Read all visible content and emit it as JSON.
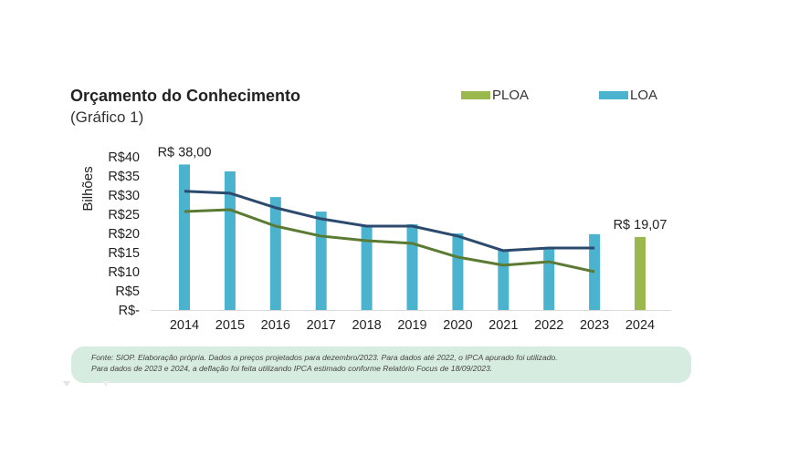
{
  "header": {
    "title": "Orçamento do Conhecimento",
    "subtitle": "(Gráfico 1)"
  },
  "legend": [
    {
      "label": "PLOA",
      "color": "#9bb84e"
    },
    {
      "label": "LOA",
      "color": "#4cb3cf"
    }
  ],
  "footnote": {
    "line1": "Fonte: SIOP. Elaboração própria. Dados a preços projetados para dezembro/2023. Para dados até 2022, o IPCA apurado foi utilizado.",
    "line2": "Para dados de 2023 e 2024, a deflação foi feita utilizando IPCA estimado conforme Relatório Focus de 18/09/2023."
  },
  "chart_data": {
    "type": "bar",
    "title": "Orçamento do Conhecimento (Gráfico 1)",
    "xlabel": "",
    "ylabel": "Bilhões",
    "ylim": [
      0,
      40
    ],
    "yticks": [
      0,
      5,
      10,
      15,
      20,
      25,
      30,
      35,
      40
    ],
    "ytick_labels": [
      "R$-",
      "R$5",
      "R$10",
      "R$15",
      "R$20",
      "R$25",
      "R$30",
      "R$35",
      "R$40"
    ],
    "categories": [
      "2014",
      "2015",
      "2016",
      "2017",
      "2018",
      "2019",
      "2020",
      "2021",
      "2022",
      "2023",
      "2024"
    ],
    "grid": false,
    "legend_position": "top-right",
    "series": [
      {
        "name": "LOA",
        "kind": "bar",
        "color": "#4cb3cf",
        "values": [
          38.0,
          36.2,
          29.5,
          25.7,
          21.9,
          22.4,
          20.0,
          15.5,
          16.0,
          19.8,
          null
        ]
      },
      {
        "name": "PLOA",
        "kind": "bar",
        "color": "#9bb84e",
        "values": [
          null,
          null,
          null,
          null,
          null,
          null,
          null,
          null,
          null,
          null,
          19.07
        ]
      },
      {
        "name": "Line 1 (dark blue)",
        "kind": "line",
        "color": "#2c4a6e",
        "values": [
          31.0,
          30.5,
          26.7,
          23.8,
          21.9,
          21.9,
          19.3,
          15.5,
          16.2,
          16.2,
          null
        ]
      },
      {
        "name": "Line 2 (green)",
        "kind": "line",
        "color": "#5b7b34",
        "values": [
          25.7,
          26.2,
          21.9,
          19.3,
          18.1,
          17.4,
          13.8,
          11.7,
          12.6,
          10.0,
          null
        ]
      }
    ],
    "annotations": [
      {
        "category": "2014",
        "series": "LOA",
        "text": "R$ 38,00"
      },
      {
        "category": "2024",
        "series": "PLOA",
        "text": "R$ 19,07"
      }
    ]
  }
}
